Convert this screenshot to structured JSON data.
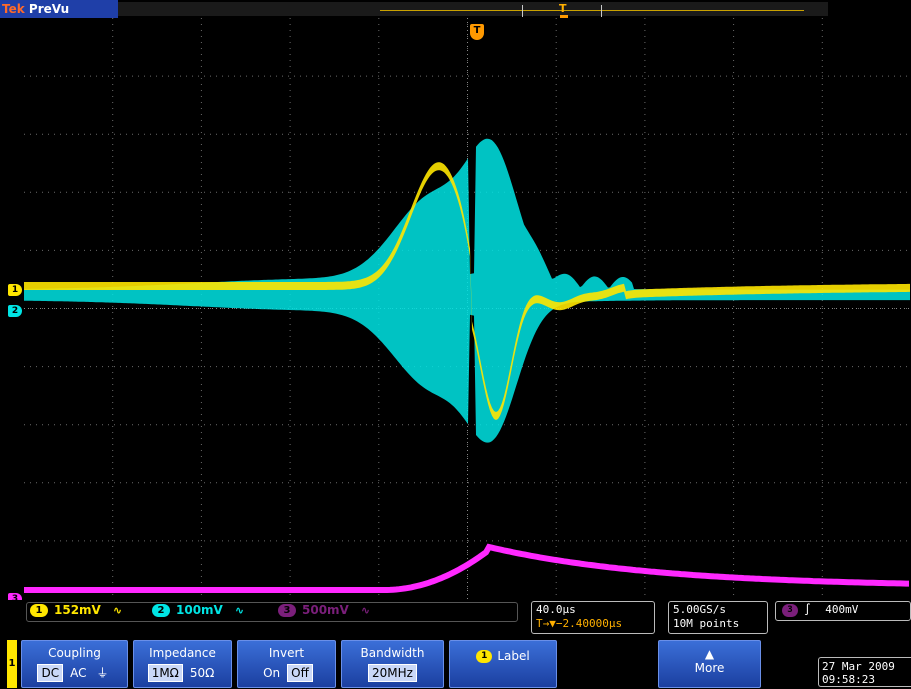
{
  "top_bar": {
    "brand_prefix": "Tek",
    "brand_mode": "PreVu",
    "record_trigger_marker": "T"
  },
  "graticule": {
    "divisions_x": 10,
    "divisions_y": 10,
    "trigger_marker": "T",
    "colors": {
      "ch1": "#ffe600",
      "ch2": "#00e5e5",
      "ch3": "#ff28ff",
      "trigger": "#ff9900"
    }
  },
  "channel_markers": {
    "ch1": "1",
    "ch2": "2",
    "ch3": "3"
  },
  "readout": {
    "ch1": {
      "badge": "1",
      "scale": "152mV",
      "bw_symbol": "∿"
    },
    "ch2": {
      "badge": "2",
      "scale": "100mV",
      "bw_symbol": "∿"
    },
    "ch3": {
      "badge": "3",
      "scale": "500mV",
      "bw_symbol": "∿"
    },
    "timebase": {
      "scale": "40.0µs",
      "position": "T→▼−2.40000µs"
    },
    "acquisition": {
      "sample_rate": "5.00GS/s",
      "record_length": "10M points"
    },
    "trigger": {
      "source_badge": "3",
      "slope_symbol": "∫",
      "level": "400mV"
    }
  },
  "menu": {
    "channel_tab": "1",
    "coupling": {
      "title": "Coupling",
      "options": [
        "DC",
        "AC",
        "⏚"
      ],
      "selected": "DC"
    },
    "impedance": {
      "title": "Impedance",
      "options": [
        "1MΩ",
        "50Ω"
      ],
      "selected": "1MΩ"
    },
    "invert": {
      "title": "Invert",
      "options": [
        "On",
        "Off"
      ],
      "selected": "Off"
    },
    "bandwidth": {
      "title": "Bandwidth",
      "value": "20MHz"
    },
    "label": {
      "badge": "1",
      "title": "Label"
    },
    "more": {
      "arrow": "▲",
      "title": "More"
    },
    "datetime": {
      "date": "27 Mar 2009",
      "time": "09:58:23"
    }
  }
}
